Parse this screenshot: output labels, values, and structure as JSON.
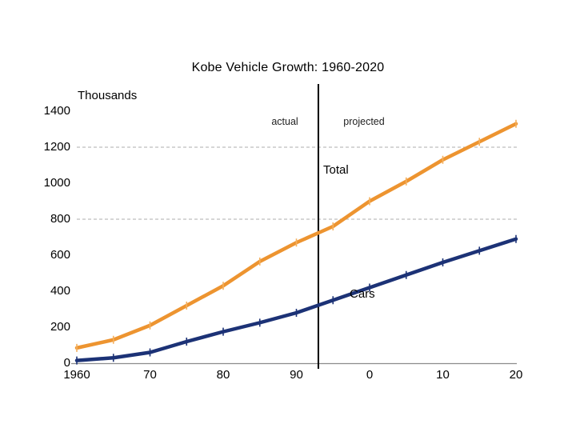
{
  "slide": {
    "title": "Kobe Vehicle Growth: 1960-2020",
    "y_axis_unit_label": "Thousands",
    "annotation_actual": "actual",
    "annotation_projected": "projected"
  },
  "colors": {
    "total_line": "#ED9430",
    "total_marker": "#F4B05E",
    "cars_line": "#1C3276",
    "cars_marker": "#1C3276",
    "axis_line": "#8C8C8C",
    "gridline": "#A0A0A0",
    "divider_line": "#000000",
    "text": "#000000"
  },
  "chart_data": {
    "type": "line",
    "title": "Kobe Vehicle Growth: 1960-2020",
    "xlabel": "",
    "ylabel": "Thousands",
    "xlim": [
      1960,
      2020
    ],
    "ylim": [
      0,
      1400
    ],
    "grid": "dashed horizontal gridlines at 800 and 1200 only",
    "gridlines_at": [
      800,
      1200
    ],
    "divider_year": 1993,
    "divider_labels": {
      "left": "actual",
      "right": "projected"
    },
    "legend_position": "labels placed directly on chart next to lines",
    "x": [
      1960,
      1965,
      1970,
      1975,
      1980,
      1985,
      1990,
      1995,
      2000,
      2005,
      2010,
      2015,
      2020
    ],
    "series": [
      {
        "name": "Total",
        "values": [
          85,
          130,
          210,
          320,
          430,
          565,
          670,
          760,
          900,
          1010,
          1130,
          1230,
          1330
        ]
      },
      {
        "name": "Cars",
        "values": [
          15,
          30,
          60,
          120,
          175,
          225,
          280,
          350,
          420,
          490,
          560,
          625,
          690
        ]
      }
    ],
    "y_ticks": [
      {
        "label": "1400",
        "value": 1400
      },
      {
        "label": "1200",
        "value": 1200
      },
      {
        "label": "1000",
        "value": 1000
      },
      {
        "label": "800",
        "value": 800
      },
      {
        "label": "600",
        "value": 600
      },
      {
        "label": "400",
        "value": 400
      },
      {
        "label": "200",
        "value": 200
      },
      {
        "label": "0",
        "value": 0
      }
    ],
    "x_ticks": [
      {
        "label": "1960",
        "value": 1960
      },
      {
        "label": "70",
        "value": 1970
      },
      {
        "label": "80",
        "value": 1980
      },
      {
        "label": "90",
        "value": 1990
      },
      {
        "label": "0",
        "value": 2000
      },
      {
        "label": "10",
        "value": 2010
      },
      {
        "label": "20",
        "value": 2020
      }
    ]
  }
}
